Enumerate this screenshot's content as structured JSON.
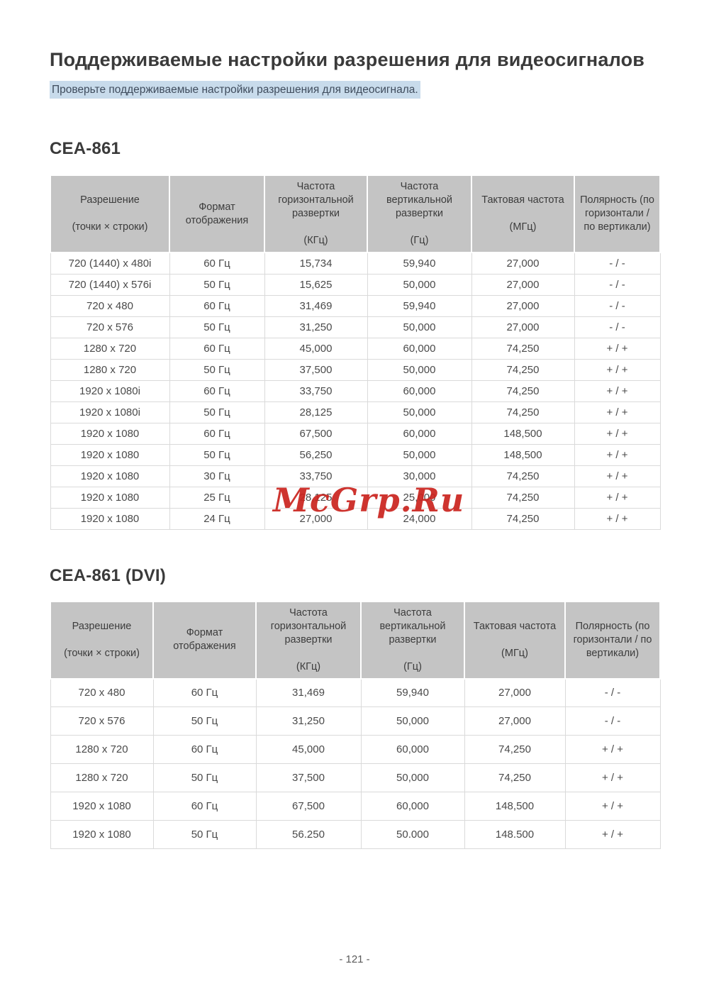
{
  "page": {
    "title": "Поддерживаемые настройки разрешения для видеосигналов",
    "subtitle": "Проверьте поддерживаемые настройки разрешения для видеосигнала.",
    "page_number": "- 121 -",
    "watermark": "McGrp.Ru"
  },
  "colors": {
    "table_header_bg": "#c4c4c4",
    "subtitle_highlight_bg": "#c8dbeb",
    "watermark_red": "#ca231d",
    "body_text": "#4a4a4a"
  },
  "tables": [
    {
      "heading": "CEA-861",
      "columns": [
        "Разрешение\n\n(точки × строки)",
        "Формат\nотображения",
        "Частота\nгоризонтальной\nразвертки\n\n(КГц)",
        "Частота\nвертикальной\nразвертки\n\n(Гц)",
        "Тактовая частота\n\n(МГц)",
        "Полярность (по\nгоризонтали /\nпо вертикали)"
      ],
      "rows": [
        [
          "720 (1440) x 480i",
          "60 Гц",
          "15,734",
          "59,940",
          "27,000",
          "- / -"
        ],
        [
          "720 (1440) x 576i",
          "50 Гц",
          "15,625",
          "50,000",
          "27,000",
          "- / -"
        ],
        [
          "720 x 480",
          "60 Гц",
          "31,469",
          "59,940",
          "27,000",
          "- / -"
        ],
        [
          "720 x 576",
          "50 Гц",
          "31,250",
          "50,000",
          "27,000",
          "- / -"
        ],
        [
          "1280 x 720",
          "60 Гц",
          "45,000",
          "60,000",
          "74,250",
          "+ / +"
        ],
        [
          "1280 x 720",
          "50 Гц",
          "37,500",
          "50,000",
          "74,250",
          "+ / +"
        ],
        [
          "1920 x 1080i",
          "60 Гц",
          "33,750",
          "60,000",
          "74,250",
          "+ / +"
        ],
        [
          "1920 x 1080i",
          "50 Гц",
          "28,125",
          "50,000",
          "74,250",
          "+ / +"
        ],
        [
          "1920 x 1080",
          "60 Гц",
          "67,500",
          "60,000",
          "148,500",
          "+ / +"
        ],
        [
          "1920 x 1080",
          "50 Гц",
          "56,250",
          "50,000",
          "148,500",
          "+ / +"
        ],
        [
          "1920 x 1080",
          "30 Гц",
          "33,750",
          "30,000",
          "74,250",
          "+ / +"
        ],
        [
          "1920 x 1080",
          "25 Гц",
          "28,125",
          "25,000",
          "74,250",
          "+ / +"
        ],
        [
          "1920 x 1080",
          "24 Гц",
          "27,000",
          "24,000",
          "74,250",
          "+ / +"
        ]
      ]
    },
    {
      "heading": "CEA-861 (DVI)",
      "columns": [
        "Разрешение\n\n(точки × строки)",
        "Формат\nотображения",
        "Частота\nгоризонтальной\nразвертки\n\n(КГц)",
        "Частота\nвертикальной\nразвертки\n\n(Гц)",
        "Тактовая частота\n\n(МГц)",
        "Полярность (по\nгоризонтали / по\nвертикали)"
      ],
      "rows": [
        [
          "720 x 480",
          "60 Гц",
          "31,469",
          "59,940",
          "27,000",
          "- / -"
        ],
        [
          "720 x 576",
          "50 Гц",
          "31,250",
          "50,000",
          "27,000",
          "- / -"
        ],
        [
          "1280 x 720",
          "60 Гц",
          "45,000",
          "60,000",
          "74,250",
          "+ / +"
        ],
        [
          "1280 x 720",
          "50 Гц",
          "37,500",
          "50,000",
          "74,250",
          "+ / +"
        ],
        [
          "1920 x 1080",
          "60 Гц",
          "67,500",
          "60,000",
          "148,500",
          "+ / +"
        ],
        [
          "1920 x 1080",
          "50 Гц",
          "56.250",
          "50.000",
          "148.500",
          "+ / +"
        ]
      ]
    }
  ]
}
